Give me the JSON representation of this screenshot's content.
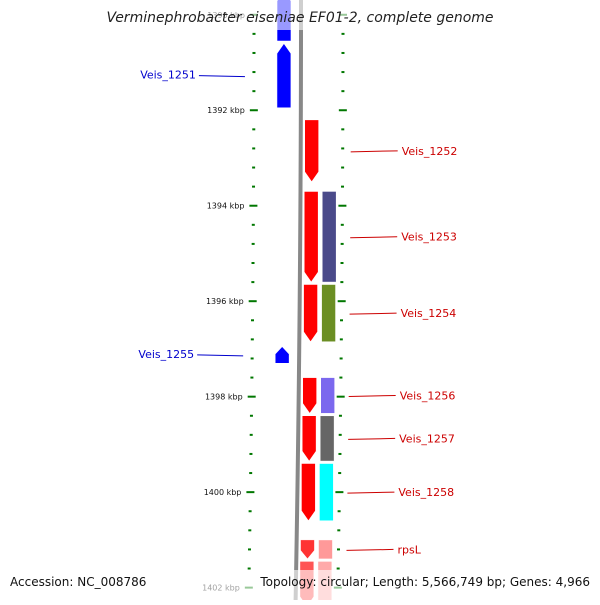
{
  "title": "Verminephrobacter eiseniae EF01-2, complete genome",
  "footer": {
    "accession": "Accession: NC_008786",
    "summary": "Topology: circular; Length: 5,566,749 bp; Genes: 4,966"
  },
  "scale": {
    "unit": "kbp",
    "ticks": [
      {
        "kbp": 1390,
        "label": "1390 kbp"
      },
      {
        "kbp": 1392,
        "label": "1392 kbp"
      },
      {
        "kbp": 1394,
        "label": "1394 kbp"
      },
      {
        "kbp": 1396,
        "label": "1396 kbp"
      },
      {
        "kbp": 1398,
        "label": "1398 kbp"
      },
      {
        "kbp": 1400,
        "label": "1400 kbp"
      },
      {
        "kbp": 1402,
        "label": "1402 kbp"
      }
    ]
  },
  "colors": {
    "forward_gene": "#ff0000",
    "reverse_gene": "#0000ff",
    "backbone": "#888888",
    "tick": "#007700"
  },
  "genes": [
    {
      "label": "",
      "strand": "minus",
      "start_kbp": 1389.5,
      "end_kbp": 1390.55,
      "color": "#0000ff"
    },
    {
      "label": "Veis_1251",
      "strand": "minus",
      "start_kbp": 1390.6,
      "end_kbp": 1391.95,
      "color": "#0000ff"
    },
    {
      "label": "Veis_1252",
      "strand": "plus",
      "start_kbp": 1392.2,
      "end_kbp": 1393.5,
      "color": "#ff0000",
      "cog_color": ""
    },
    {
      "label": "Veis_1253",
      "strand": "plus",
      "start_kbp": 1393.7,
      "end_kbp": 1395.6,
      "color": "#ff0000",
      "cog_color": "#4a4a8a"
    },
    {
      "label": "Veis_1254",
      "strand": "plus",
      "start_kbp": 1395.65,
      "end_kbp": 1396.85,
      "color": "#ff0000",
      "cog_color": "#6b8e23"
    },
    {
      "label": "Veis_1255",
      "strand": "minus",
      "start_kbp": 1396.95,
      "end_kbp": 1397.3,
      "color": "#0000ff"
    },
    {
      "label": "Veis_1256",
      "strand": "plus",
      "start_kbp": 1397.6,
      "end_kbp": 1398.35,
      "color": "#ff0000",
      "cog_color": "#7b68ee"
    },
    {
      "label": "Veis_1257",
      "strand": "plus",
      "start_kbp": 1398.4,
      "end_kbp": 1399.35,
      "color": "#ff0000",
      "cog_color": "#666666"
    },
    {
      "label": "Veis_1258",
      "strand": "plus",
      "start_kbp": 1399.4,
      "end_kbp": 1400.6,
      "color": "#ff0000",
      "cog_color": "#00ffff"
    },
    {
      "label": "rpsL",
      "strand": "plus",
      "start_kbp": 1401.0,
      "end_kbp": 1401.4,
      "color": "#ff3333",
      "cog_color": "#ff9999"
    },
    {
      "label": "",
      "strand": "plus",
      "start_kbp": 1401.45,
      "end_kbp": 1402.4,
      "color": "#ff5555",
      "cog_color": "#ffaaaa"
    }
  ]
}
